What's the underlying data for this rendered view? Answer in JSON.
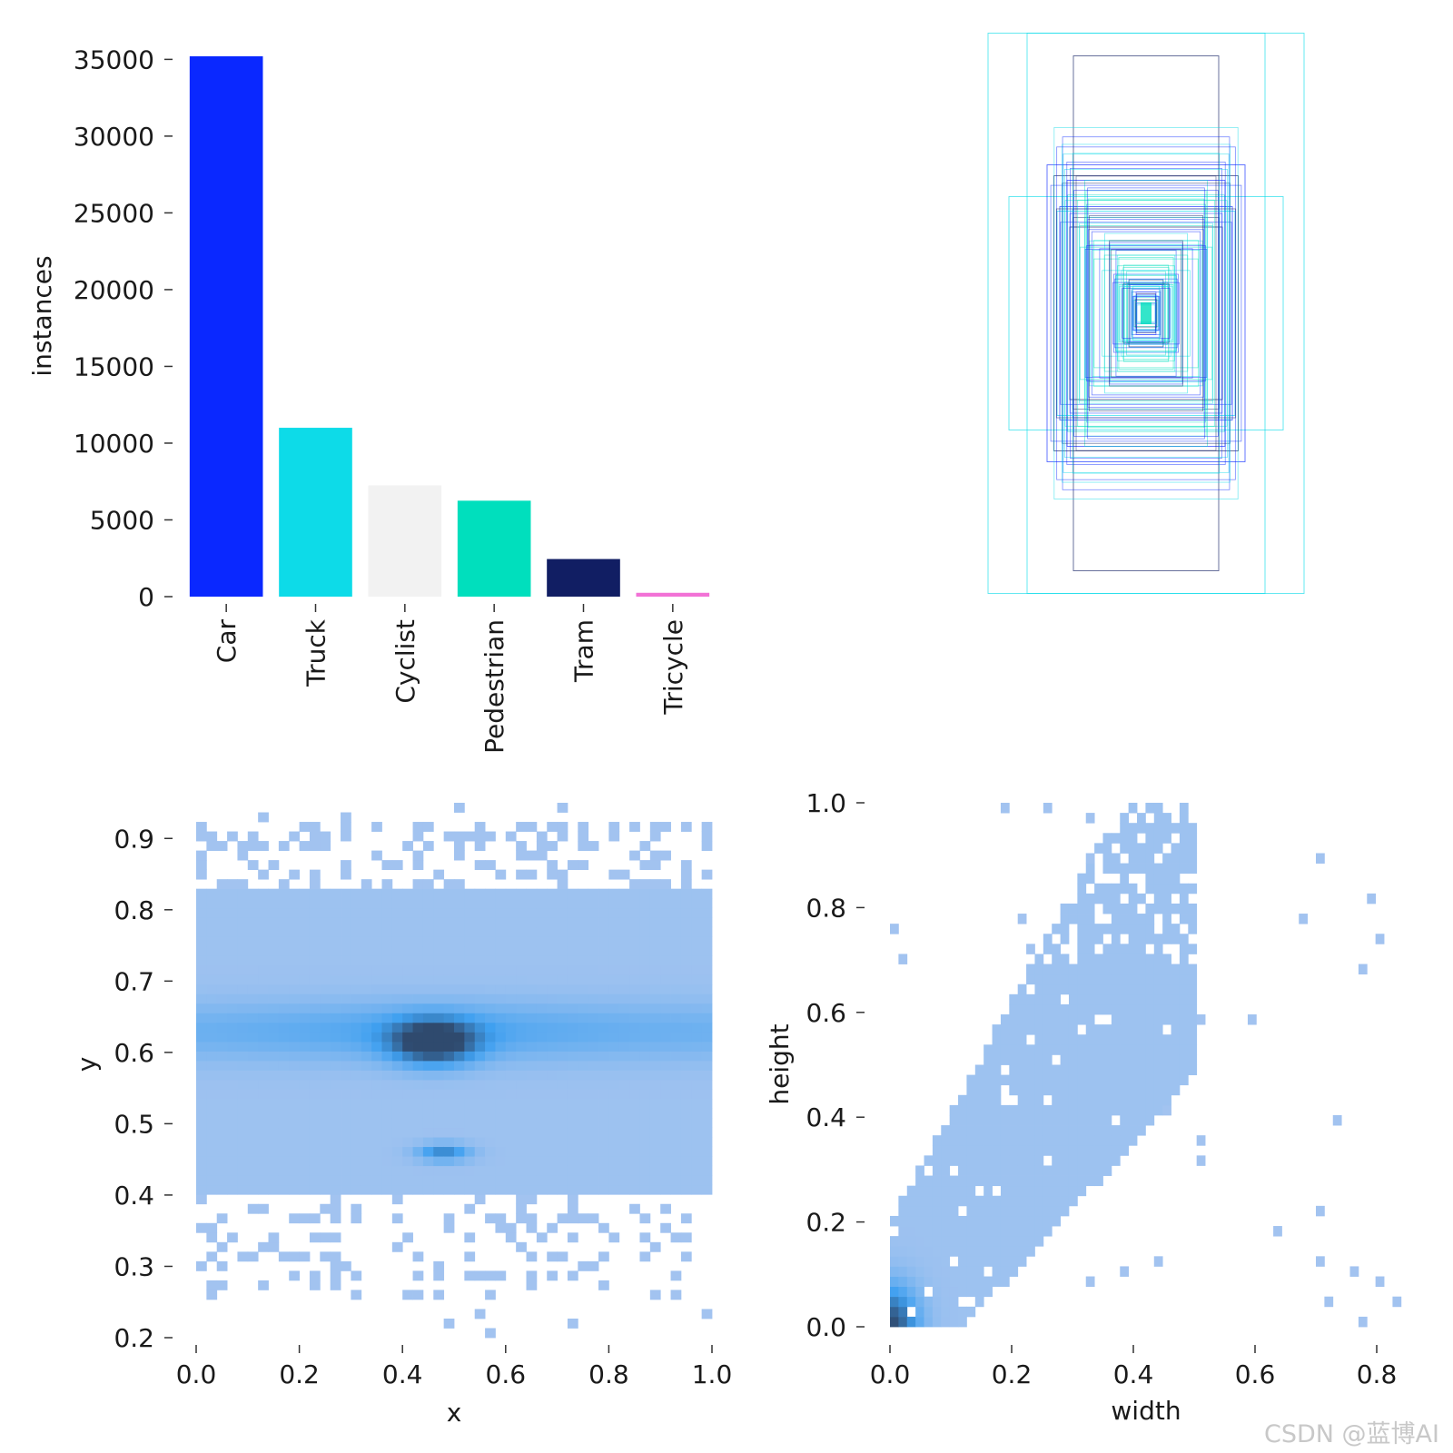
{
  "chart_data": [
    {
      "type": "bar",
      "panel": "class-instances",
      "categories": [
        "Car",
        "Truck",
        "Cyclist",
        "Pedestrian",
        "Tram",
        "Tricycle"
      ],
      "values": [
        35200,
        11000,
        7250,
        6250,
        2450,
        250
      ],
      "colors": [
        "#0a28ff",
        "#0ddbe8",
        "#f2f2f2",
        "#00dfbd",
        "#111e63",
        "#f272d6"
      ],
      "ylabel": "instances",
      "ylim": [
        0,
        35200
      ],
      "yticks": [
        "0",
        "5000",
        "10000",
        "15000",
        "20000",
        "25000",
        "30000",
        "35000"
      ],
      "grid": false
    },
    {
      "type": "other",
      "panel": "box-overlay",
      "description_kind": "overlaid centered bounding boxes",
      "colors": [
        "#0a28ff",
        "#0ddbe8",
        "#111e63",
        "#00dfbd"
      ]
    },
    {
      "type": "heatmap",
      "panel": "center-xy",
      "xlabel": "x",
      "ylabel": "y",
      "xlim": [
        0.0,
        1.0
      ],
      "ylim": [
        0.2,
        0.95
      ],
      "xticks": [
        "0.0",
        "0.2",
        "0.4",
        "0.6",
        "0.8",
        "1.0"
      ],
      "yticks": [
        "0.2",
        "0.3",
        "0.4",
        "0.5",
        "0.6",
        "0.7",
        "0.8",
        "0.9"
      ],
      "peak": {
        "x": 0.45,
        "y": 0.62
      },
      "secondary_peak": {
        "x": 0.48,
        "y": 0.46
      },
      "colors": {
        "low": "#afc8f0",
        "mid": "#3fa0f0",
        "high": "#2f4a6e"
      }
    },
    {
      "type": "heatmap",
      "panel": "width-height",
      "xlabel": "width",
      "ylabel": "height",
      "xlim": [
        0.0,
        0.84
      ],
      "ylim": [
        0.0,
        1.0
      ],
      "xticks": [
        "0.0",
        "0.2",
        "0.4",
        "0.6",
        "0.8"
      ],
      "yticks": [
        "0.0",
        "0.2",
        "0.4",
        "0.6",
        "0.8",
        "1.0"
      ],
      "peak": {
        "x": 0.01,
        "y": 0.03
      },
      "colors": {
        "low": "#afc8f0",
        "mid": "#3fa0f0",
        "high": "#2f4a6e"
      }
    }
  ],
  "watermark": "CSDN @蓝博AI"
}
